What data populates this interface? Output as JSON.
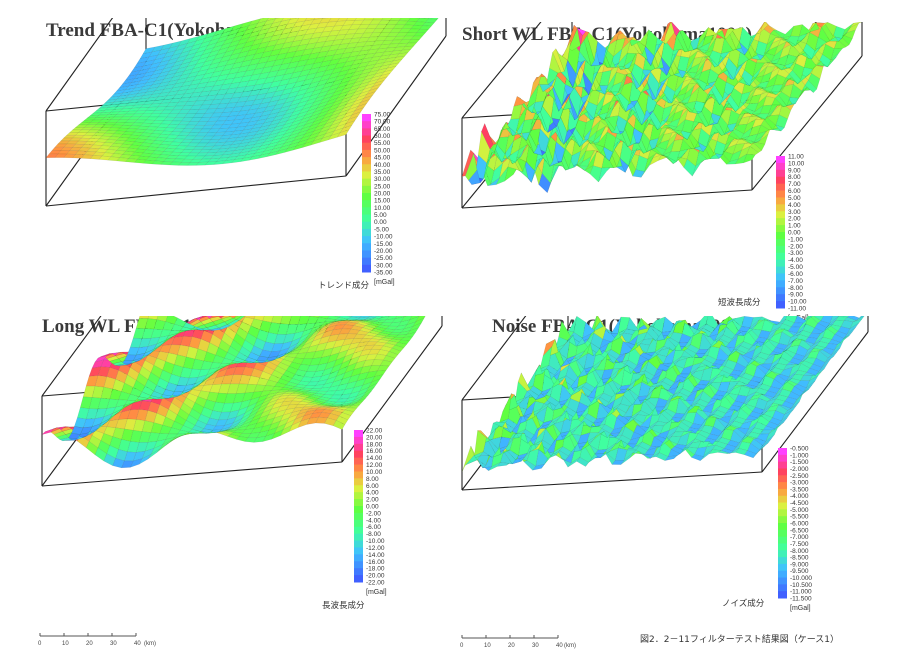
{
  "unit": "[mGal]",
  "scale_unit": "(km)",
  "scale_ticks": [
    "0",
    "10",
    "20",
    "30",
    "40"
  ],
  "figure_caption": "図2．2－11フィルターテスト結果図（ケース1）",
  "chart_data": [
    {
      "type": "surface3d",
      "title": "Trend FBA-C1(Yokohama1000)",
      "caption": "トレンド成分",
      "colorbar": [
        "75.00",
        "70.00",
        "65.00",
        "60.00",
        "55.00",
        "50.00",
        "45.00",
        "40.00",
        "35.00",
        "30.00",
        "25.00",
        "20.00",
        "15.00",
        "10.00",
        "5.00",
        "0.00",
        "-5.00",
        "-10.00",
        "-15.00",
        "-20.00",
        "-25.00",
        "-30.00",
        "-35.00"
      ],
      "colormap": [
        "#ff40ff",
        "#ff4060",
        "#ff8040",
        "#ffe040",
        "#60ff40",
        "#40ffa0",
        "#40c0ff",
        "#4060ff"
      ],
      "ylim": [
        -35,
        75
      ]
    },
    {
      "type": "surface3d",
      "title": "Short WL FBA-C1(Yokohama1000)",
      "caption": "短波長成分",
      "colorbar": [
        "11.00",
        "10.00",
        "9.00",
        "8.00",
        "7.00",
        "6.00",
        "5.00",
        "4.00",
        "3.00",
        "2.00",
        "1.00",
        "0.00",
        "-1.00",
        "-2.00",
        "-3.00",
        "-4.00",
        "-5.00",
        "-6.00",
        "-7.00",
        "-8.00",
        "-9.00",
        "-10.00",
        "-11.00"
      ],
      "colormap": [
        "#ff40ff",
        "#ff4060",
        "#ff8040",
        "#ffe040",
        "#60ff40",
        "#40ffa0",
        "#40c0ff",
        "#4060ff"
      ],
      "ylim": [
        -11,
        11
      ]
    },
    {
      "type": "surface3d",
      "title": "Long WL FBA-C1(Yokohama1000)",
      "caption": "長波長成分",
      "colorbar": [
        "22.00",
        "20.00",
        "18.00",
        "16.00",
        "14.00",
        "12.00",
        "10.00",
        "8.00",
        "6.00",
        "4.00",
        "2.00",
        "0.00",
        "-2.00",
        "-4.00",
        "-6.00",
        "-8.00",
        "-10.00",
        "-12.00",
        "-14.00",
        "-16.00",
        "-18.00",
        "-20.00",
        "-22.00"
      ],
      "colormap": [
        "#ff40ff",
        "#ff4060",
        "#ff8040",
        "#ffe040",
        "#60ff40",
        "#40ffa0",
        "#40c0ff",
        "#4060ff"
      ],
      "ylim": [
        -22,
        22
      ]
    },
    {
      "type": "surface3d",
      "title": "Noise FBA-C1(Yokohama1000)",
      "caption": "ノイズ成分",
      "colorbar": [
        "-0.500",
        "-1.000",
        "-1.500",
        "-2.000",
        "-2.500",
        "-3.000",
        "-3.500",
        "-4.000",
        "-4.500",
        "-5.000",
        "-5.500",
        "-6.000",
        "-6.500",
        "-7.000",
        "-7.500",
        "-8.000",
        "-8.500",
        "-9.000",
        "-9.500",
        "-10.000",
        "-10.500",
        "-11.000",
        "-11.500"
      ],
      "colormap": [
        "#ff40ff",
        "#ff4060",
        "#ff8040",
        "#ffe040",
        "#60ff40",
        "#40ffa0",
        "#40c0ff",
        "#4060ff"
      ],
      "ylim": [
        -11.5,
        -0.5
      ]
    }
  ]
}
